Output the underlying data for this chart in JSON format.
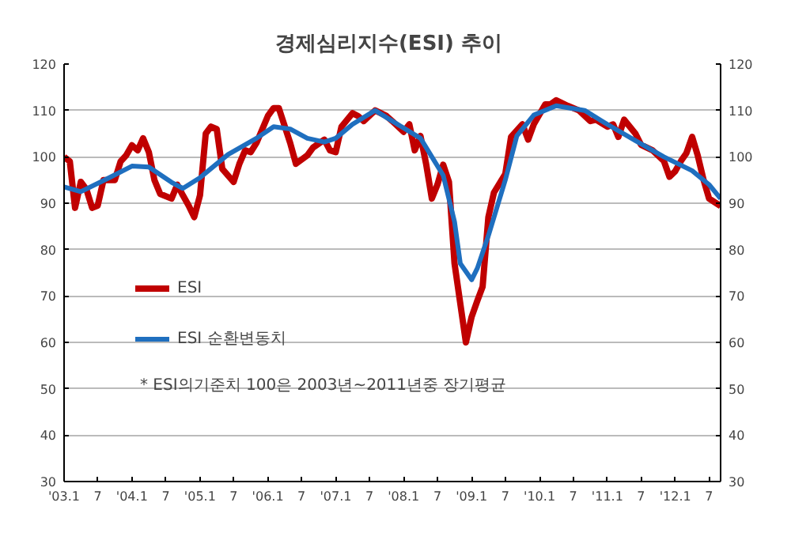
{
  "chart_data": {
    "type": "line",
    "title": "경제심리지수(ESI)  추이",
    "xlim": [
      "2003-01",
      "2012-09"
    ],
    "xticks": [
      {
        "value": "2003-01",
        "label": "'03.1"
      },
      {
        "value": "2003-07",
        "label": "7"
      },
      {
        "value": "2004-01",
        "label": "'04.1"
      },
      {
        "value": "2004-07",
        "label": "7"
      },
      {
        "value": "2005-01",
        "label": "'05.1"
      },
      {
        "value": "2005-07",
        "label": "7"
      },
      {
        "value": "2006-01",
        "label": "'06.1"
      },
      {
        "value": "2006-07",
        "label": "7"
      },
      {
        "value": "2007-01",
        "label": "'07.1"
      },
      {
        "value": "2007-07",
        "label": "7"
      },
      {
        "value": "2008-01",
        "label": "'08.1"
      },
      {
        "value": "2008-07",
        "label": "7"
      },
      {
        "value": "2009-01",
        "label": "'09.1"
      },
      {
        "value": "2009-07",
        "label": "7"
      },
      {
        "value": "2010-01",
        "label": "'10.1"
      },
      {
        "value": "2010-07",
        "label": "7"
      },
      {
        "value": "2011-01",
        "label": "'11.1"
      },
      {
        "value": "2011-07",
        "label": "7"
      },
      {
        "value": "2012-01",
        "label": "'12.1"
      },
      {
        "value": "2012-07",
        "label": "7"
      }
    ],
    "ylim": [
      30,
      120
    ],
    "yticks": [
      30,
      40,
      50,
      60,
      70,
      80,
      90,
      100,
      110,
      120
    ],
    "y2lim": [
      30,
      120
    ],
    "y2ticks": [
      30,
      40,
      50,
      60,
      70,
      80,
      90,
      100,
      110,
      120
    ],
    "grid": "y",
    "legend": "bottom left",
    "marker": "none",
    "line_style": "solid",
    "annotations": [
      "* ESI의기준치 100은 2003년~2011년중 장기평균"
    ],
    "series": [
      {
        "name": "ESI",
        "color": "#c00000",
        "x": [
          "2003-01",
          "2003-02",
          "2003-03",
          "2003-04",
          "2003-05",
          "2003-06",
          "2003-07",
          "2003-08",
          "2003-10",
          "2003-11",
          "2003-12",
          "2004-01",
          "2004-02",
          "2004-03",
          "2004-04",
          "2004-05",
          "2004-06",
          "2004-08",
          "2004-09",
          "2004-10",
          "2004-11",
          "2004-12",
          "2005-01",
          "2005-02",
          "2005-03",
          "2005-04",
          "2005-05",
          "2005-07",
          "2005-08",
          "2005-09",
          "2005-10",
          "2005-11",
          "2006-01",
          "2006-02",
          "2006-03",
          "2006-05",
          "2006-06",
          "2006-08",
          "2006-09",
          "2006-11",
          "2006-12",
          "2007-01",
          "2007-02",
          "2007-04",
          "2007-05",
          "2007-06",
          "2007-08",
          "2007-10",
          "2007-11",
          "2008-01",
          "2008-02",
          "2008-03",
          "2008-04",
          "2008-05",
          "2008-06",
          "2008-07",
          "2008-08",
          "2008-09",
          "2008-10",
          "2008-12",
          "2009-01",
          "2009-02",
          "2009-03",
          "2009-04",
          "2009-05",
          "2009-07",
          "2009-08",
          "2009-10",
          "2009-11",
          "2009-12",
          "2010-02",
          "2010-03",
          "2010-04",
          "2010-06",
          "2010-08",
          "2010-10",
          "2010-11",
          "2011-01",
          "2011-02",
          "2011-03",
          "2011-04",
          "2011-06",
          "2011-07",
          "2011-09",
          "2011-11",
          "2011-12",
          "2012-01",
          "2012-02",
          "2012-03",
          "2012-04",
          "2012-05",
          "2012-06",
          "2012-07",
          "2012-09"
        ],
        "values": [
          100,
          99,
          89,
          94.6,
          93,
          89,
          89.5,
          95,
          95,
          99,
          100.3,
          102.5,
          101.4,
          104,
          101,
          95,
          92,
          91,
          94,
          91.7,
          89.5,
          87,
          91.7,
          105,
          106.5,
          106,
          97.4,
          94.6,
          98.5,
          101.4,
          101,
          103,
          108.8,
          110.5,
          110.5,
          103,
          98.5,
          100.3,
          102,
          103.7,
          101.4,
          101,
          106.5,
          109.4,
          108.8,
          107.7,
          110,
          108.8,
          107.7,
          105.4,
          107,
          101.4,
          104.5,
          98.5,
          91,
          94,
          98.3,
          94.6,
          77,
          60,
          65.5,
          69,
          72,
          87,
          92.3,
          96.3,
          104.3,
          107,
          103.7,
          107,
          111.3,
          111.3,
          112.2,
          111,
          110,
          107.7,
          108,
          106.5,
          107,
          104.3,
          108,
          105,
          102.6,
          101.4,
          99.1,
          95.7,
          96.9,
          99.1,
          100.8,
          104.3,
          100.3,
          95.1,
          91,
          89.4
        ]
      },
      {
        "name": "ESI 순환변동치",
        "color": "#1f6fbf",
        "x": [
          "2003-01",
          "2003-04",
          "2003-09",
          "2004-01",
          "2004-04",
          "2004-08",
          "2004-10",
          "2005-01",
          "2005-06",
          "2005-11",
          "2006-02",
          "2006-05",
          "2006-08",
          "2006-11",
          "2007-01",
          "2007-04",
          "2007-08",
          "2007-11",
          "2008-04",
          "2008-08",
          "2008-10",
          "2008-11",
          "2009-01",
          "2009-02",
          "2009-04",
          "2009-07",
          "2009-09",
          "2009-12",
          "2010-04",
          "2010-09",
          "2011-01",
          "2011-06",
          "2011-11",
          "2012-04",
          "2012-07",
          "2012-09"
        ],
        "values": [
          93.5,
          92.5,
          95.5,
          98,
          97.8,
          94.5,
          93.2,
          95.5,
          100.5,
          104,
          106.5,
          106,
          104,
          103.2,
          104,
          107,
          110,
          107.7,
          104,
          96,
          86,
          77,
          73.5,
          76,
          83,
          95,
          104.5,
          109,
          111,
          110,
          107,
          103.5,
          100,
          97,
          94,
          91
        ]
      }
    ]
  }
}
